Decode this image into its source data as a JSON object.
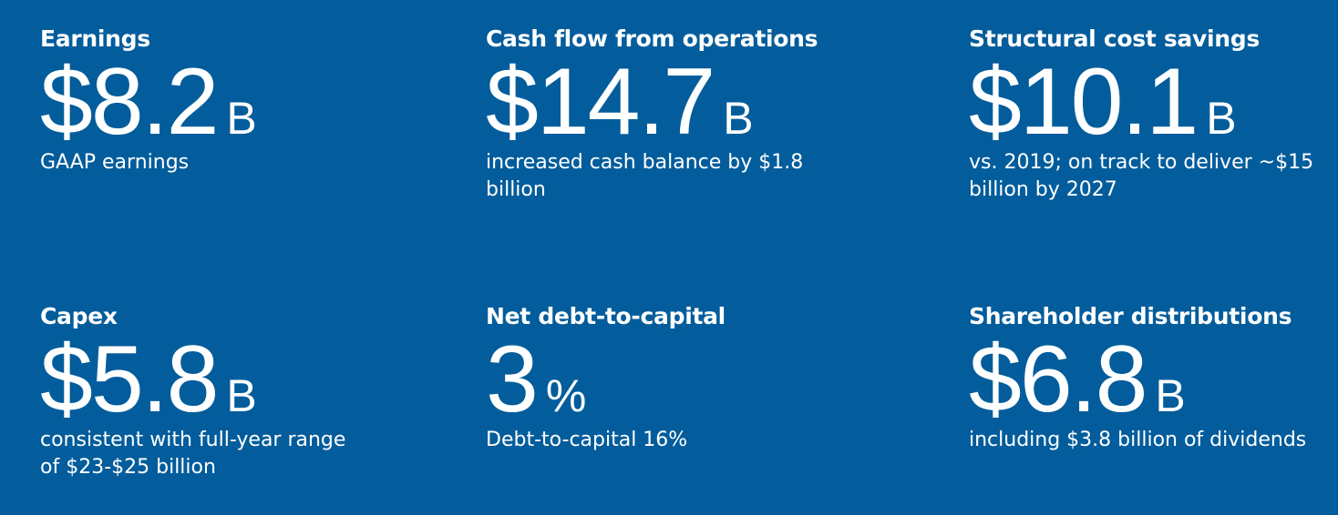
{
  "metrics": [
    {
      "title": "Earnings",
      "value": "$8.2",
      "unit": "B",
      "description": "GAAP earnings"
    },
    {
      "title": "Cash flow from operations",
      "value": "$14.7",
      "unit": "B",
      "description": "increased cash balance by $1.8 billion"
    },
    {
      "title": "Structural cost savings",
      "value": "$10.1",
      "unit": "B",
      "description": "vs. 2019; on track to deliver ~$15 billion by 2027"
    },
    {
      "title": "Capex",
      "value": "$5.8",
      "unit": "B",
      "description": "consistent with full-year range of $23-$25 billion"
    },
    {
      "title": "Net debt-to-capital",
      "value": "3",
      "unit": "%",
      "description": "Debt-to-capital 16%"
    },
    {
      "title": "Shareholder distributions",
      "value": "$6.8",
      "unit": "B",
      "description": "including $3.8 billion of dividends"
    }
  ]
}
